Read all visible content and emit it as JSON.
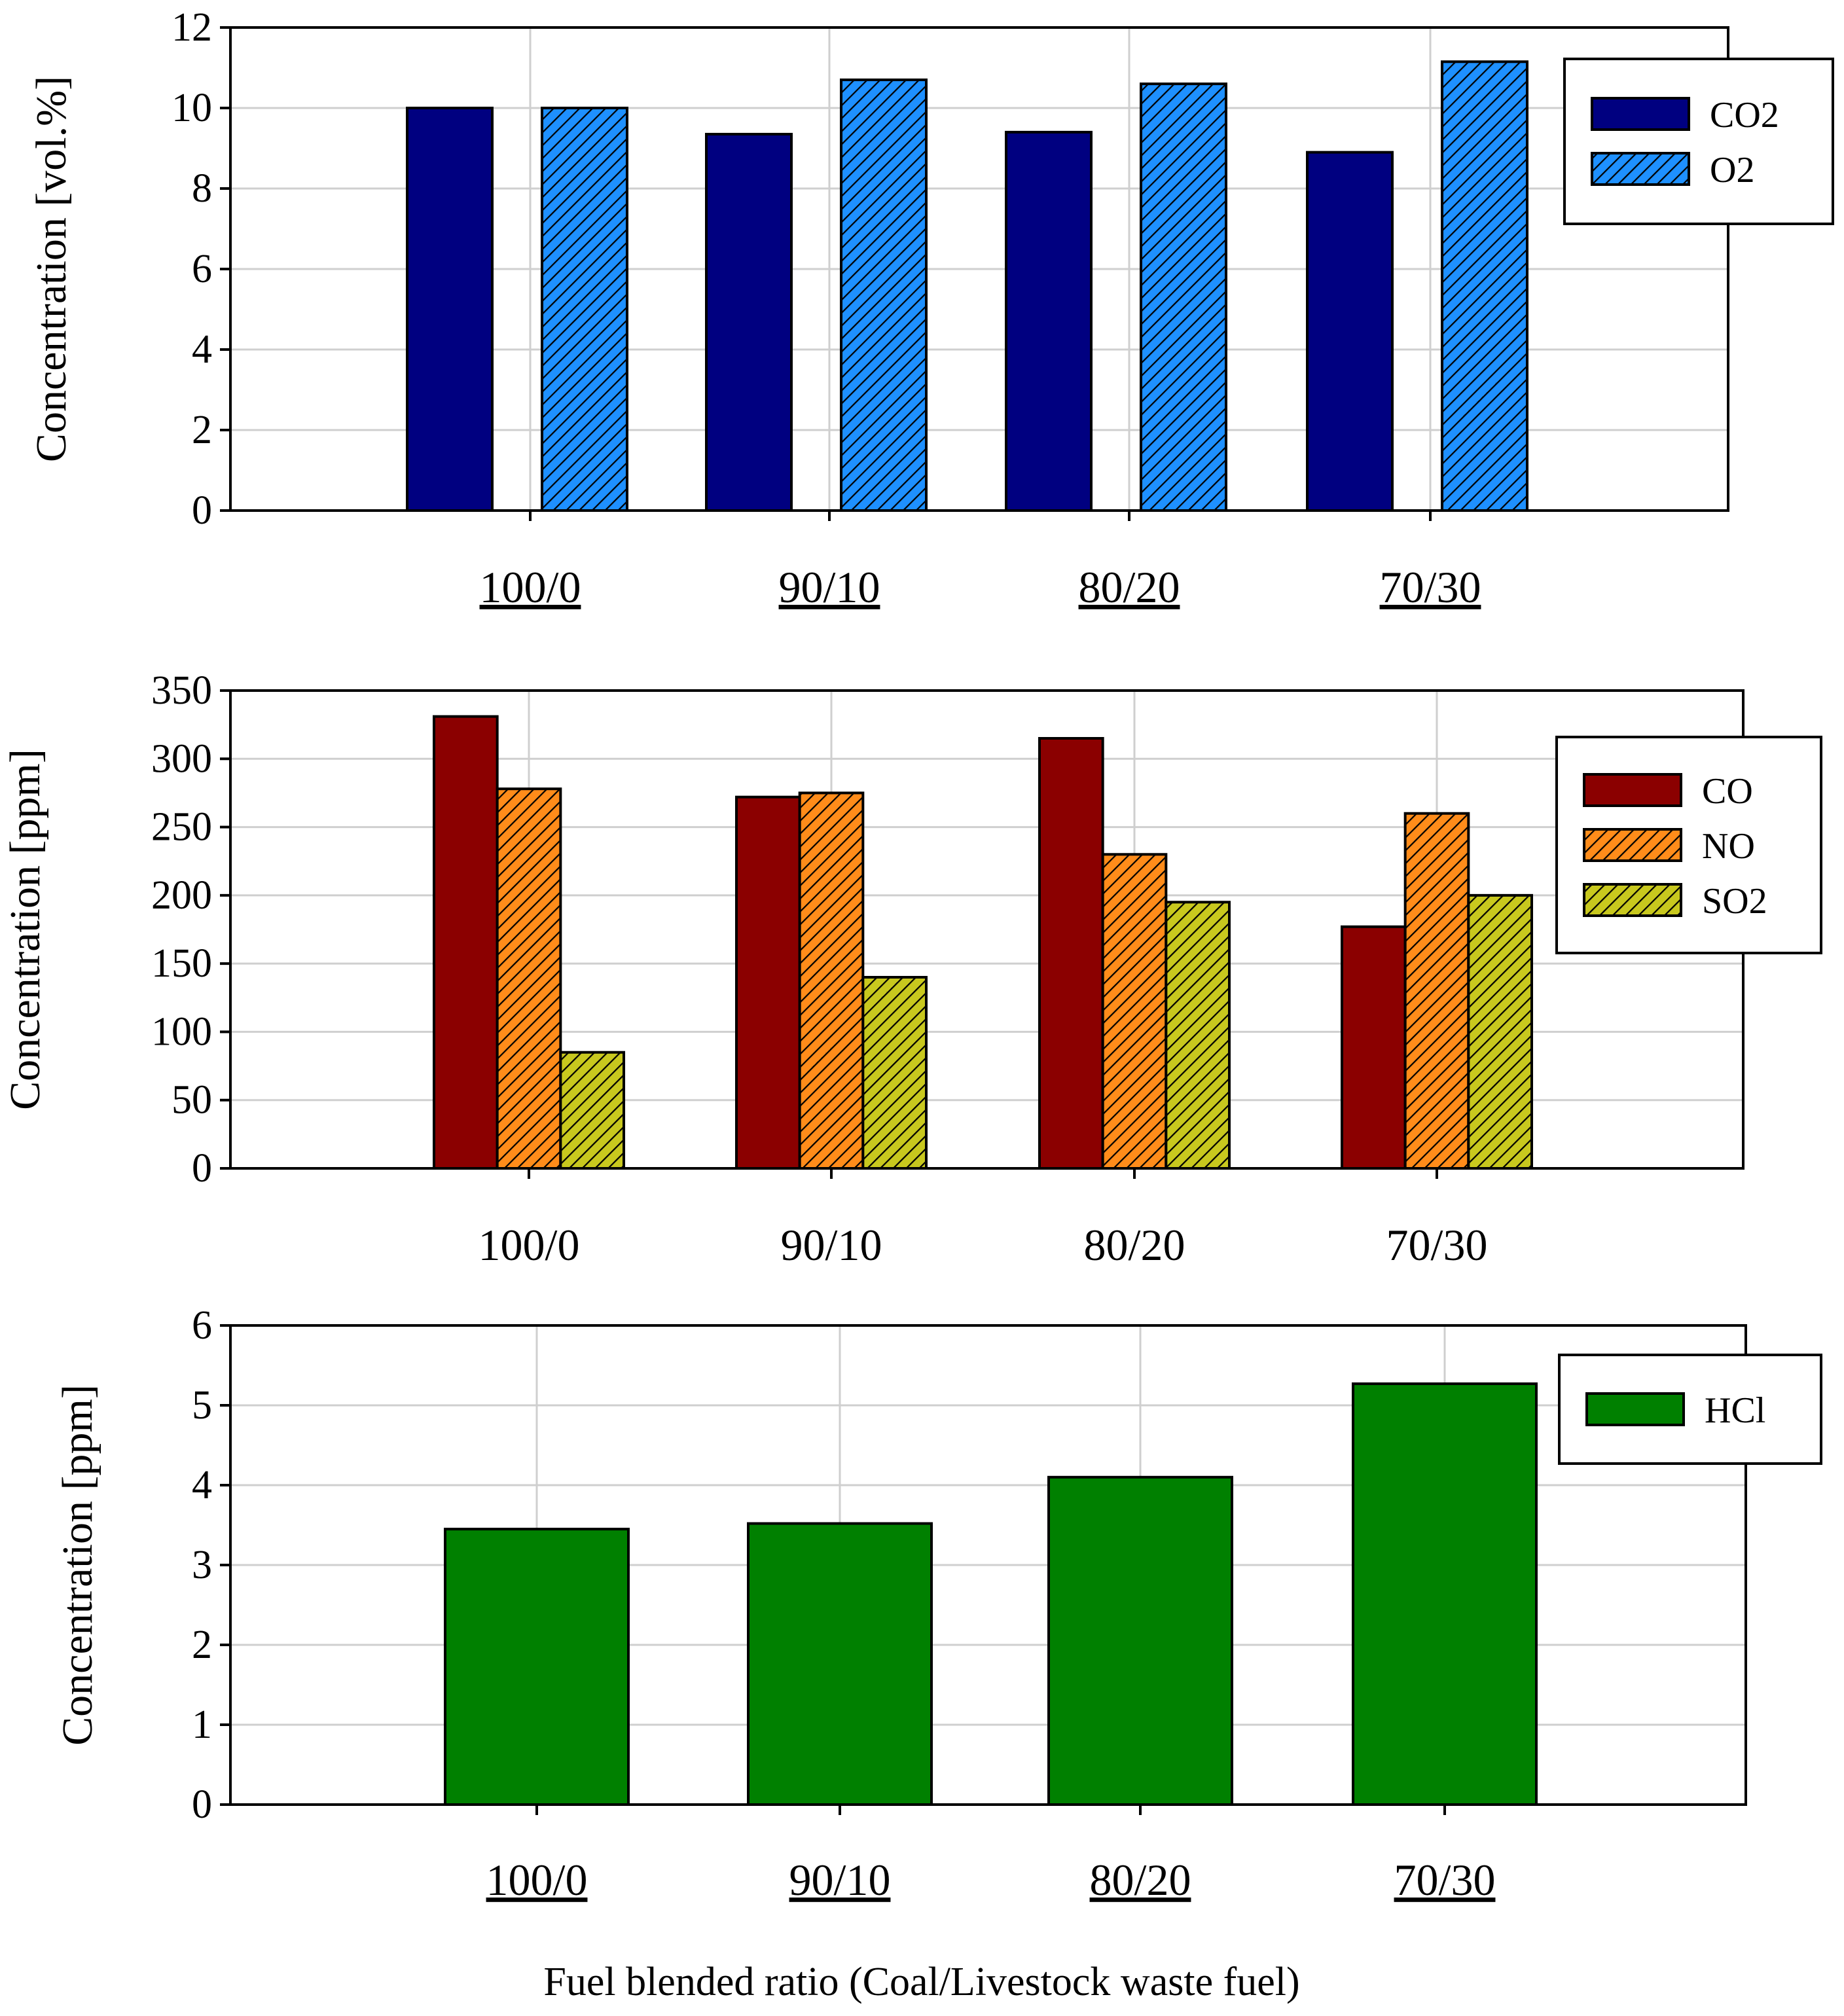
{
  "xlabel": "Fuel blended ratio (Coal/Livestock waste fuel)",
  "chart_data": [
    {
      "type": "bar",
      "title": "",
      "ylabel": "Concentration [vol.%]",
      "ylim": [
        0,
        12
      ],
      "yticks": [
        "0",
        "2",
        "4",
        "6",
        "8",
        "10",
        "12"
      ],
      "categories": [
        "100/0",
        "90/10",
        "80/20",
        "70/30"
      ],
      "categories_underlined": true,
      "grid": true,
      "legend_position": "top-right",
      "series": [
        {
          "name": "CO2",
          "values": [
            10.0,
            9.35,
            9.4,
            8.9
          ],
          "color": "#000080",
          "hatch": false
        },
        {
          "name": "O2",
          "values": [
            10.0,
            10.7,
            10.6,
            11.15
          ],
          "color": "#1E90FF",
          "hatch": true
        }
      ]
    },
    {
      "type": "bar",
      "title": "",
      "ylabel": "Concentration [ppm]",
      "ylim": [
        0,
        350
      ],
      "yticks": [
        "0",
        "50",
        "100",
        "150",
        "200",
        "250",
        "300",
        "350"
      ],
      "categories": [
        "100/0",
        "90/10",
        "80/20",
        "70/30"
      ],
      "categories_underlined": false,
      "grid": true,
      "legend_position": "right",
      "series": [
        {
          "name": "CO",
          "values": [
            331,
            272,
            315,
            177
          ],
          "color": "#8B0000",
          "hatch": false
        },
        {
          "name": "NO",
          "values": [
            278,
            275,
            230,
            260
          ],
          "color": "#FF8C1A",
          "hatch": true
        },
        {
          "name": "SO2",
          "values": [
            85,
            140,
            195,
            200
          ],
          "color": "#C8C81E",
          "hatch": true
        }
      ]
    },
    {
      "type": "bar",
      "title": "",
      "ylabel": "Concentration [ppm]",
      "ylim": [
        0,
        6
      ],
      "yticks": [
        "0",
        "1",
        "2",
        "3",
        "4",
        "5",
        "6"
      ],
      "categories": [
        "100/0",
        "90/10",
        "80/20",
        "70/30"
      ],
      "categories_underlined": true,
      "grid": true,
      "legend_position": "top-right",
      "series": [
        {
          "name": "HCl",
          "values": [
            3.45,
            3.52,
            4.1,
            5.27
          ],
          "color": "#008000",
          "hatch": false
        }
      ]
    }
  ]
}
